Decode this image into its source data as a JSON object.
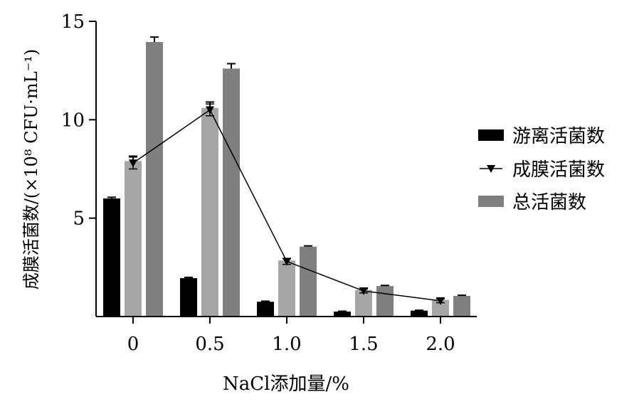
{
  "chart_data": {
    "type": "bar",
    "categories": [
      "0",
      "0.5",
      "1.0",
      "1.5",
      "2.0"
    ],
    "series": [
      {
        "name": "游离活菌数",
        "type": "bar",
        "color": "#000000",
        "values": [
          6.0,
          1.95,
          0.75,
          0.25,
          0.3
        ],
        "errors": [
          0.06,
          0.04,
          0.03,
          0.02,
          0.02
        ]
      },
      {
        "name": "成膜活菌数",
        "type": "bar+line",
        "color": "#a6a6a6",
        "values": [
          7.9,
          10.6,
          2.85,
          1.35,
          0.85
        ],
        "errors": [
          0.25,
          0.3,
          0.1,
          0.08,
          0.07
        ]
      },
      {
        "name": "总活菌数",
        "type": "bar",
        "color": "#7f7f7f",
        "values": [
          13.95,
          12.6,
          3.55,
          1.55,
          1.05
        ],
        "errors": [
          0.25,
          0.25,
          0.04,
          0.03,
          0.03
        ]
      }
    ],
    "line_series": {
      "name": "成膜活菌数",
      "marker": "triangle-down",
      "color": "#000000",
      "values": [
        7.8,
        10.5,
        2.8,
        1.3,
        0.8
      ],
      "errors": [
        0.3,
        0.3,
        0.15,
        0.1,
        0.1
      ]
    },
    "xlabel": "NaCl添加量/%",
    "ylabel": "成膜活菌数/(×10⁸ CFU·mL⁻¹)",
    "ylim": [
      0,
      15
    ],
    "yticks": [
      5,
      10,
      15
    ],
    "grid": false,
    "legend_position": "right"
  }
}
